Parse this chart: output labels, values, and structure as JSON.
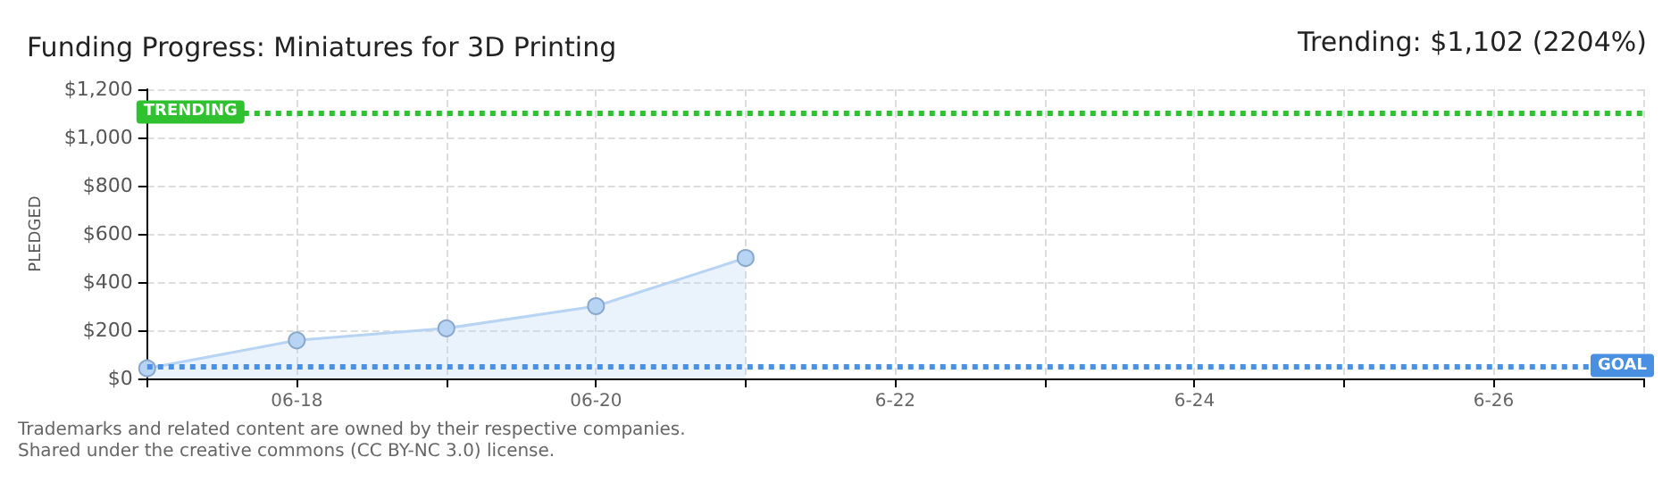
{
  "chart_data": {
    "type": "area",
    "title": "Funding Progress: Miniatures for 3D Printing",
    "ylabel": "PLEDGED",
    "annotations": [
      "Trending: $1,102 (2204%)",
      "Trademarks and related content are owned by their respective companies.",
      "Shared under the creative commons (CC BY-NC 3.0) license."
    ],
    "x": [
      "--06-17",
      "--06-18",
      "--06-19",
      "--06-20",
      "--06-21"
    ],
    "series": [
      {
        "color": "#b8d4f4",
        "values": [
          42,
          158,
          208,
          300,
          500
        ]
      }
    ],
    "xlim": [
      "--06-17",
      "--06-27"
    ],
    "xticks": [
      {
        "value": "--06-17",
        "label": null
      },
      {
        "value": "--06-18",
        "label": "06-18"
      },
      {
        "value": "--06-19",
        "label": null
      },
      {
        "value": "--06-20",
        "label": "06-20"
      },
      {
        "value": "--06-21",
        "label": null
      },
      {
        "value": "--06-22",
        "label": "6-22"
      },
      {
        "value": "--06-23",
        "label": null
      },
      {
        "value": "--06-24",
        "label": "6-24"
      },
      {
        "value": "--06-25",
        "label": null
      },
      {
        "value": "--06-26",
        "label": "6-26"
      },
      {
        "value": "--06-27",
        "label": null
      }
    ],
    "ylim": [
      0,
      1200
    ],
    "yticks": [
      {
        "value": 0,
        "label": "$0"
      },
      {
        "value": 200,
        "label": "$200"
      },
      {
        "value": 400,
        "label": "$400"
      },
      {
        "value": 600,
        "label": "$600"
      },
      {
        "value": 800,
        "label": "$800"
      },
      {
        "value": 1000,
        "label": "$1,000"
      },
      {
        "value": 1200,
        "label": "$1,200"
      }
    ],
    "ref_lines": [
      {
        "axis": "y",
        "value": 1102,
        "label": "TRENDING",
        "color": "#2fc12f",
        "line_style": "dotted"
      },
      {
        "axis": "y",
        "value": 50,
        "label": "GOAL",
        "color": "#4a90e2",
        "line_style": "dotted"
      }
    ],
    "grid": true,
    "marker": "circle"
  }
}
